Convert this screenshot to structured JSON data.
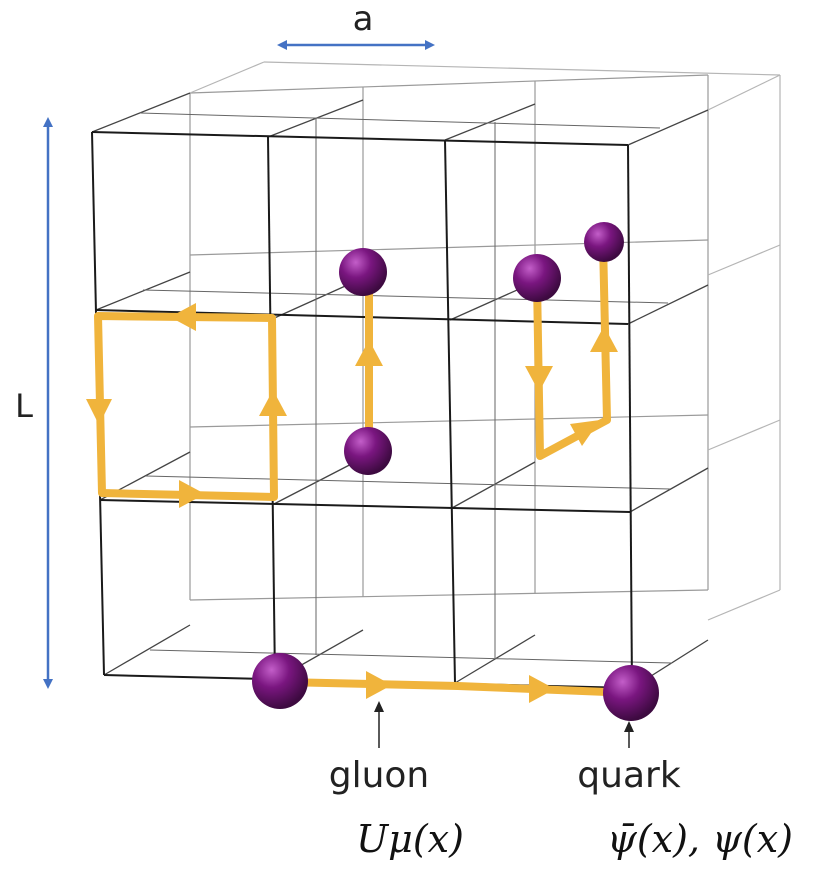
{
  "labels": {
    "spacing": "a",
    "size": "L",
    "gluon": "gluon",
    "quark": "quark",
    "gluon_field": "Uμ(x)",
    "quark_field": "ψ̄(x), ψ(x)"
  },
  "colors": {
    "measure_arrow": "#4472c4",
    "link_arrow": "#f0b43c",
    "quark": "#7a1680",
    "grid_front": "#1a1a1a",
    "grid_back": "#8c8c8c"
  },
  "icons": [
    "quark-sphere",
    "gluon-link-arrow",
    "measure-arrow"
  ]
}
